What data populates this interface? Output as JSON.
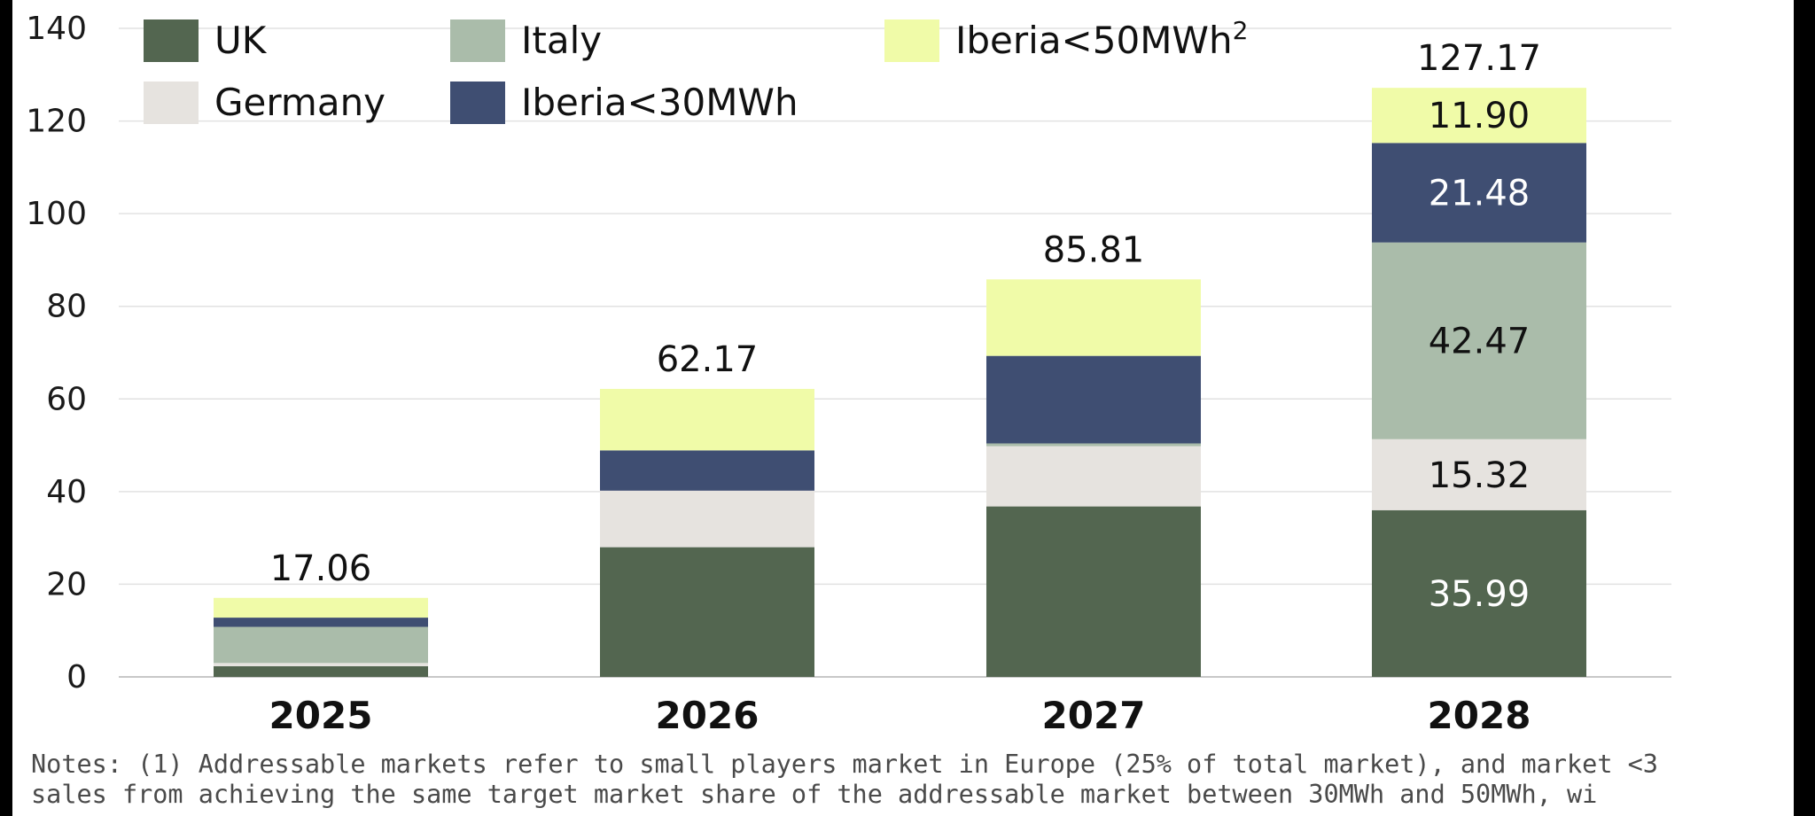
{
  "chart_data": {
    "type": "bar",
    "stacked": true,
    "categories": [
      "2025",
      "2026",
      "2027",
      "2028"
    ],
    "series": [
      {
        "name": "UK",
        "color": "#536650",
        "values": [
          2.3,
          28.0,
          36.8,
          35.99
        ]
      },
      {
        "name": "Germany",
        "color": "#e6e3df",
        "values": [
          0.7,
          12.2,
          13.0,
          15.32
        ]
      },
      {
        "name": "Italy",
        "color": "#aabcaa",
        "values": [
          7.8,
          0.0,
          0.6,
          42.47
        ]
      },
      {
        "name": "Iberia<30MWh",
        "color": "#3f4e72",
        "values": [
          2.0,
          8.7,
          18.9,
          21.48
        ]
      },
      {
        "name": "Iberia<50MWh",
        "name_superscript": "2",
        "color": "#f0fba8",
        "values": [
          4.26,
          13.27,
          16.51,
          11.9
        ]
      }
    ],
    "totals": [
      "17.06",
      "62.17",
      "85.81",
      "127.17"
    ],
    "segment_labels": {
      "2028": [
        "35.99",
        "15.32",
        "42.47",
        "21.48",
        "11.90"
      ]
    },
    "ylim": [
      0,
      140
    ],
    "yticks": [
      0,
      20,
      40,
      60,
      80,
      100,
      120,
      140
    ],
    "grid": true,
    "legend_position": "top-left",
    "title": "",
    "xlabel": "",
    "ylabel": ""
  },
  "notes": {
    "line1": "Notes: (1) Addressable markets refer to small players market in Europe (25% of total market), and market <3",
    "line2": "sales from achieving the same target market share of the addressable market between 30MWh and 50MWh, wi"
  }
}
